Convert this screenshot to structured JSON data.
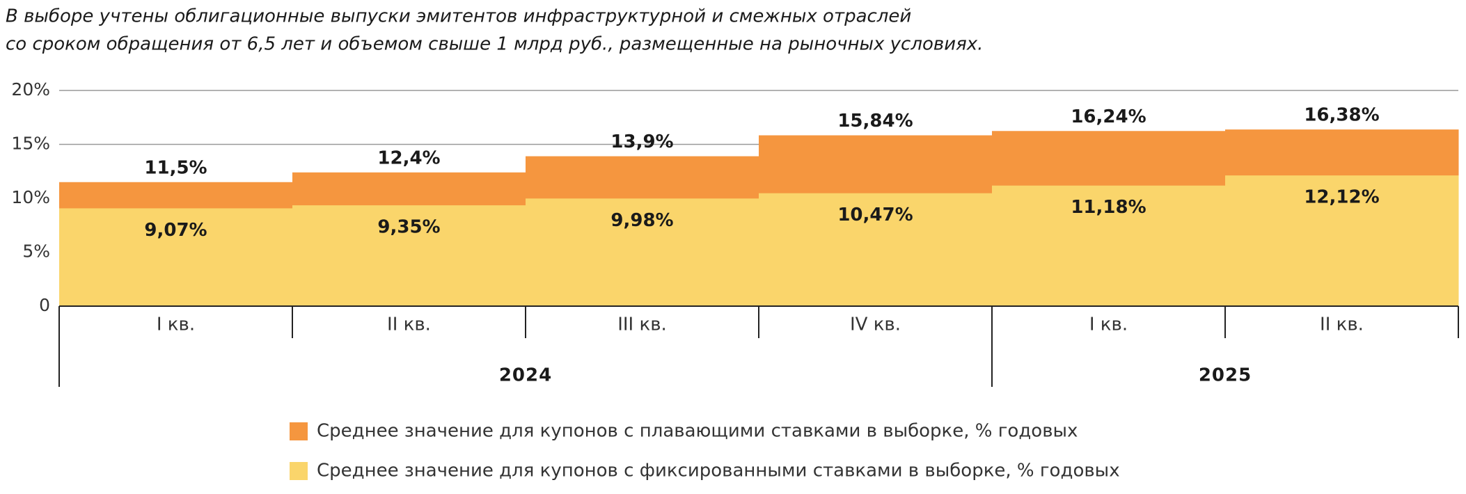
{
  "chart_data": {
    "type": "step-area",
    "subtitle": [
      "В выборе учтены облигационные выпуски эмитентов инфраструктурной и смежных отраслей",
      "со сроком обращения от 6,5 лет и объемом свыше 1 млрд руб., размещенные на рыночных условиях."
    ],
    "groups": [
      {
        "label": "2024",
        "categories": [
          "I кв.",
          "II кв.",
          "III кв.",
          "IV кв."
        ]
      },
      {
        "label": "2025",
        "categories": [
          "I кв.",
          "II кв."
        ]
      }
    ],
    "series": [
      {
        "name": "Среднее значение для купонов с плавающими ставками в выборке, % годовых",
        "color": "#f5963f",
        "values": [
          11.5,
          12.4,
          13.9,
          15.84,
          16.24,
          16.38
        ],
        "value_labels": [
          "11,5%",
          "12,4%",
          "13,9%",
          "15,84%",
          "16,24%",
          "16,38%"
        ]
      },
      {
        "name": "Среднее значение для купонов с фиксированными ставками в выборке, % годовых",
        "color": "#fad56b",
        "values": [
          9.07,
          9.35,
          9.98,
          10.47,
          11.18,
          12.12
        ],
        "value_labels": [
          "9,07%",
          "9,35%",
          "9,98%",
          "10,47%",
          "11,18%",
          "12,12%"
        ]
      }
    ],
    "ylim": [
      0,
      20
    ],
    "yticks": [
      0,
      {
        "value": 5,
        "label": "5%"
      },
      {
        "value": 10,
        "label": "10%"
      },
      {
        "value": 15,
        "label": "15%"
      },
      {
        "value": 20,
        "label": "20%"
      }
    ],
    "grid": true
  }
}
